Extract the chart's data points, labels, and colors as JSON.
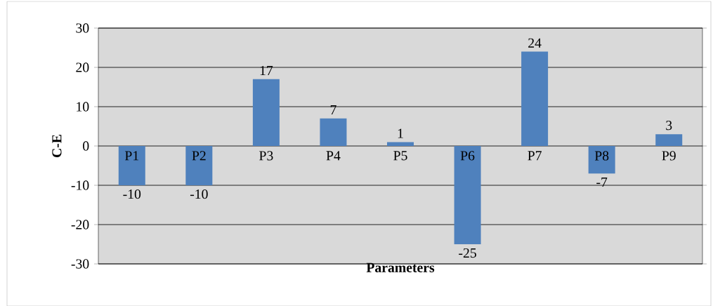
{
  "chart_data": {
    "type": "bar",
    "xlabel": "Parameters",
    "ylabel": "C-E",
    "categories": [
      "P1",
      "P2",
      "P3",
      "P4",
      "P5",
      "P6",
      "P7",
      "P8",
      "P9"
    ],
    "values": [
      -10,
      -10,
      17,
      7,
      1,
      -25,
      24,
      -7,
      3
    ],
    "color": "#4f81bd",
    "ylim": [
      -30,
      30
    ],
    "yticks": [
      -30,
      -20,
      -10,
      0,
      10,
      20,
      30
    ],
    "grid": "y",
    "data_labels": true
  }
}
